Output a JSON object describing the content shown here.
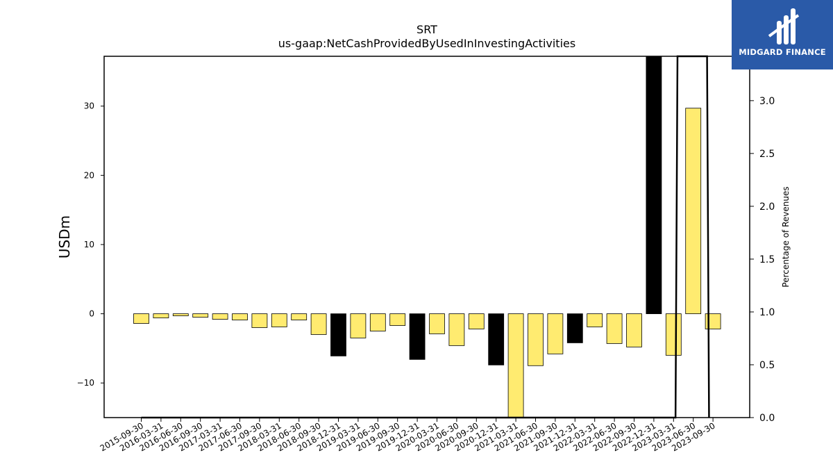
{
  "chart_data": {
    "type": "bar",
    "title": "SRT",
    "subtitle": "us-gaap:NetCashProvidedByUsedInInvestingActivities",
    "ylabel": "USDm",
    "y2label": "Percentage of Revenues",
    "ylim": [
      -15,
      37.2
    ],
    "y2lim": [
      0.0,
      3.42
    ],
    "yticks": [
      -10,
      0,
      10,
      20,
      30
    ],
    "y2ticks": [
      0.0,
      0.5,
      1.0,
      1.5,
      2.0,
      2.5,
      3.0
    ],
    "categories": [
      "2015-09-30",
      "2016-03-31",
      "2016-06-30",
      "2016-09-30",
      "2017-03-31",
      "2017-06-30",
      "2017-09-30",
      "2018-03-31",
      "2018-06-30",
      "2018-09-30",
      "2018-12-31",
      "2019-03-31",
      "2019-06-30",
      "2019-09-30",
      "2019-12-31",
      "2020-03-31",
      "2020-06-30",
      "2020-09-30",
      "2020-12-31",
      "2021-03-31",
      "2021-06-30",
      "2021-09-30",
      "2021-12-31",
      "2022-03-31",
      "2022-06-30",
      "2022-09-30",
      "2022-12-31",
      "2023-03-31",
      "2023-06-30",
      "2023-09-30"
    ],
    "values": [
      -1.4,
      -0.6,
      -0.3,
      -0.5,
      -0.8,
      -0.9,
      -2.0,
      -1.9,
      -0.9,
      -3.0,
      -6.1,
      -3.5,
      -2.5,
      -1.7,
      -6.6,
      -2.9,
      -4.6,
      -2.2,
      -7.4,
      -15.0,
      -7.5,
      -5.8,
      -4.2,
      -1.9,
      -4.3,
      -4.8,
      37.2,
      -6.0,
      29.7,
      -2.2
    ],
    "highlight": [
      false,
      false,
      false,
      false,
      false,
      false,
      false,
      false,
      false,
      false,
      true,
      false,
      false,
      false,
      true,
      false,
      false,
      false,
      true,
      false,
      false,
      false,
      true,
      false,
      false,
      false,
      true,
      false,
      false,
      false
    ],
    "pct_series": [
      {
        "x": 0,
        "y": 0.0
      },
      {
        "x": 5,
        "y": 0.0
      },
      {
        "x": 27.1,
        "y": 0.0
      },
      {
        "x": 27.2,
        "y": 3.42
      },
      {
        "x": 28.7,
        "y": 3.42
      },
      {
        "x": 28.8,
        "y": 0.0
      }
    ],
    "colors": {
      "bar": "#ffeb70",
      "highlight": "#000000",
      "line": "#000000"
    },
    "grid": false
  },
  "logo": {
    "text": "MIDGARD FINANCE"
  }
}
